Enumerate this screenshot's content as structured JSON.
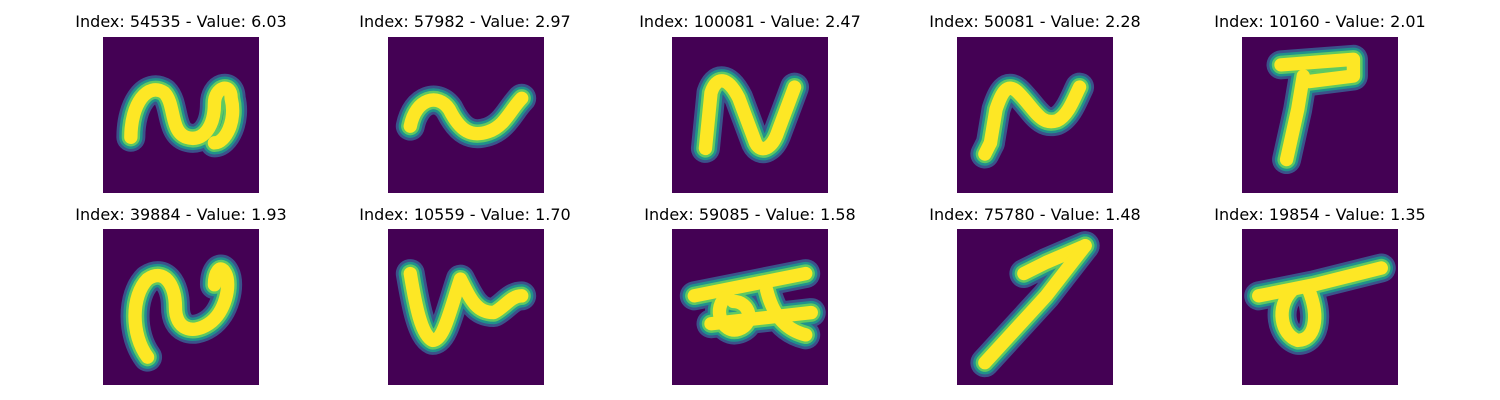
{
  "colors": {
    "background": "#440154",
    "stroke_dark": "#3b528b",
    "stroke_mid": "#21918c",
    "stroke_light": "#5ec962",
    "stroke_core": "#fde725"
  },
  "panels": [
    {
      "title": "Index: 54535 - Value: 6.03",
      "glyph": "tilde-loop-glyph"
    },
    {
      "title": "Index: 57982 - Value: 2.97",
      "glyph": "tilde-wave-glyph"
    },
    {
      "title": "Index: 100081 - Value: 2.47",
      "glyph": "n-shape-glyph"
    },
    {
      "title": "Index: 50081 - Value: 2.28",
      "glyph": "n-shape-glyph"
    },
    {
      "title": "Index: 10160 - Value: 2.01",
      "glyph": "t-shape-glyph"
    },
    {
      "title": "Index: 39884 - Value: 1.93",
      "glyph": "tilde-loop-glyph"
    },
    {
      "title": "Index: 10559 - Value: 1.70",
      "glyph": "w-wave-glyph"
    },
    {
      "title": "Index: 59085 - Value: 1.58",
      "glyph": "cross-loop-glyph"
    },
    {
      "title": "Index: 75780 - Value: 1.48",
      "glyph": "diagonal-seven-glyph"
    },
    {
      "title": "Index: 19854 - Value: 1.35",
      "glyph": "sigma-loop-glyph"
    }
  ]
}
